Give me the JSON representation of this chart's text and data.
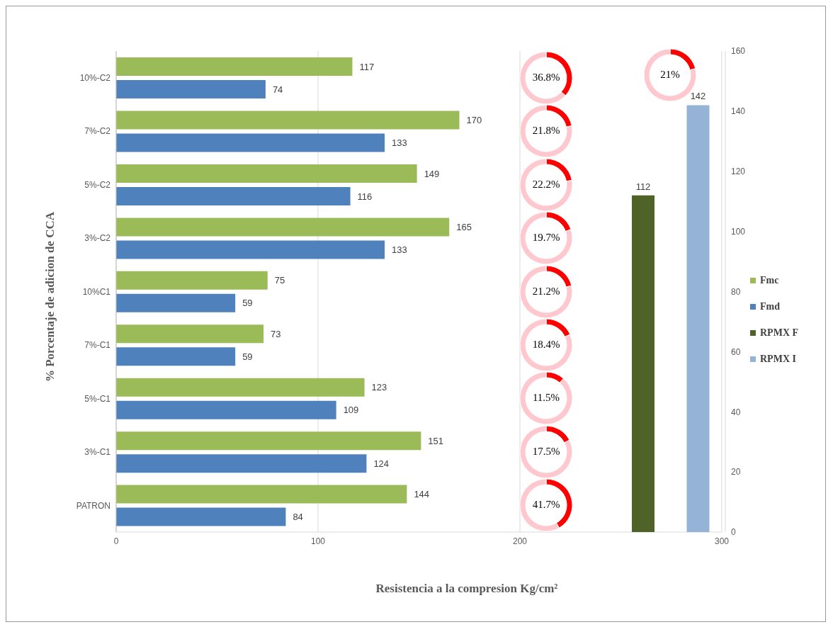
{
  "chart_data": [
    {
      "type": "bar",
      "orientation": "horizontal",
      "xlabel": "Resistencia a la compresion Kg/cm²",
      "ylabel": "% Porcentaje de adicion de CCA",
      "categories": [
        "10%-C2",
        "7%-C2",
        "5%-C2",
        "3%-C2",
        "10%C1",
        "7%-C1",
        "5%-C1",
        "3%-C1",
        "PATRON"
      ],
      "series": [
        {
          "name": "Fmc",
          "color": "#9bbb59",
          "values": [
            117,
            170,
            149,
            165,
            75,
            73,
            123,
            151,
            144
          ]
        },
        {
          "name": "Fmd",
          "color": "#4f81bd",
          "values": [
            74,
            133,
            116,
            133,
            59,
            59,
            109,
            124,
            84
          ]
        }
      ],
      "xlim": [
        0,
        300
      ],
      "xticks": [
        0,
        100,
        200,
        300
      ],
      "grid": "x",
      "data_labels": true,
      "legend": "right"
    },
    {
      "type": "donut",
      "categories": [
        null,
        null
      ],
      "values": [
        36.8,
        63.2
      ],
      "colors": [
        "#ff0000",
        "#ffc7ce"
      ],
      "annotations": [
        "36.8%"
      ]
    },
    {
      "type": "donut",
      "categories": [
        null,
        null
      ],
      "values": [
        21.8,
        78.2
      ],
      "colors": [
        "#ff0000",
        "#ffc7ce"
      ],
      "annotations": [
        "21.8%"
      ]
    },
    {
      "type": "donut",
      "categories": [
        null,
        null
      ],
      "values": [
        22.2,
        77.8
      ],
      "colors": [
        "#ff0000",
        "#ffc7ce"
      ],
      "annotations": [
        "22.2%"
      ]
    },
    {
      "type": "donut",
      "categories": [
        null,
        null
      ],
      "values": [
        19.7,
        80.3
      ],
      "colors": [
        "#ff0000",
        "#ffc7ce"
      ],
      "annotations": [
        "19.7%"
      ]
    },
    {
      "type": "donut",
      "categories": [
        null,
        null
      ],
      "values": [
        21.2,
        78.8
      ],
      "colors": [
        "#ff0000",
        "#ffc7ce"
      ],
      "annotations": [
        "21.2%"
      ]
    },
    {
      "type": "donut",
      "categories": [
        null,
        null
      ],
      "values": [
        18.4,
        81.6
      ],
      "colors": [
        "#ff0000",
        "#ffc7ce"
      ],
      "annotations": [
        "18.4%"
      ]
    },
    {
      "type": "donut",
      "categories": [
        null,
        null
      ],
      "values": [
        11.5,
        88.5
      ],
      "colors": [
        "#ff0000",
        "#ffc7ce"
      ],
      "annotations": [
        "11.5%"
      ]
    },
    {
      "type": "donut",
      "categories": [
        null,
        null
      ],
      "values": [
        17.5,
        82.5
      ],
      "colors": [
        "#ff0000",
        "#ffc7ce"
      ],
      "annotations": [
        "17.5%"
      ]
    },
    {
      "type": "donut",
      "categories": [
        null,
        null
      ],
      "values": [
        41.7,
        58.3
      ],
      "colors": [
        "#ff0000",
        "#ffc7ce"
      ],
      "annotations": [
        "41.7%"
      ]
    },
    {
      "type": "donut",
      "categories": [
        null,
        null
      ],
      "values": [
        21,
        79
      ],
      "colors": [
        "#ff0000",
        "#ffc7ce"
      ],
      "annotations": [
        "21%"
      ]
    },
    {
      "type": "bar",
      "stacked": true,
      "categories": [
        null,
        null
      ],
      "series": [
        {
          "name": "RPMX F",
          "color": "#4f6228",
          "values": [
            112,
            null
          ]
        },
        {
          "name": "RPMX I",
          "color": "#95b3d7",
          "values": [
            null,
            142
          ]
        }
      ],
      "ylim": [
        0,
        160
      ],
      "yticks": [
        0,
        20,
        40,
        60,
        80,
        100,
        120,
        140,
        160
      ],
      "data_labels": true,
      "legend": "right"
    }
  ]
}
